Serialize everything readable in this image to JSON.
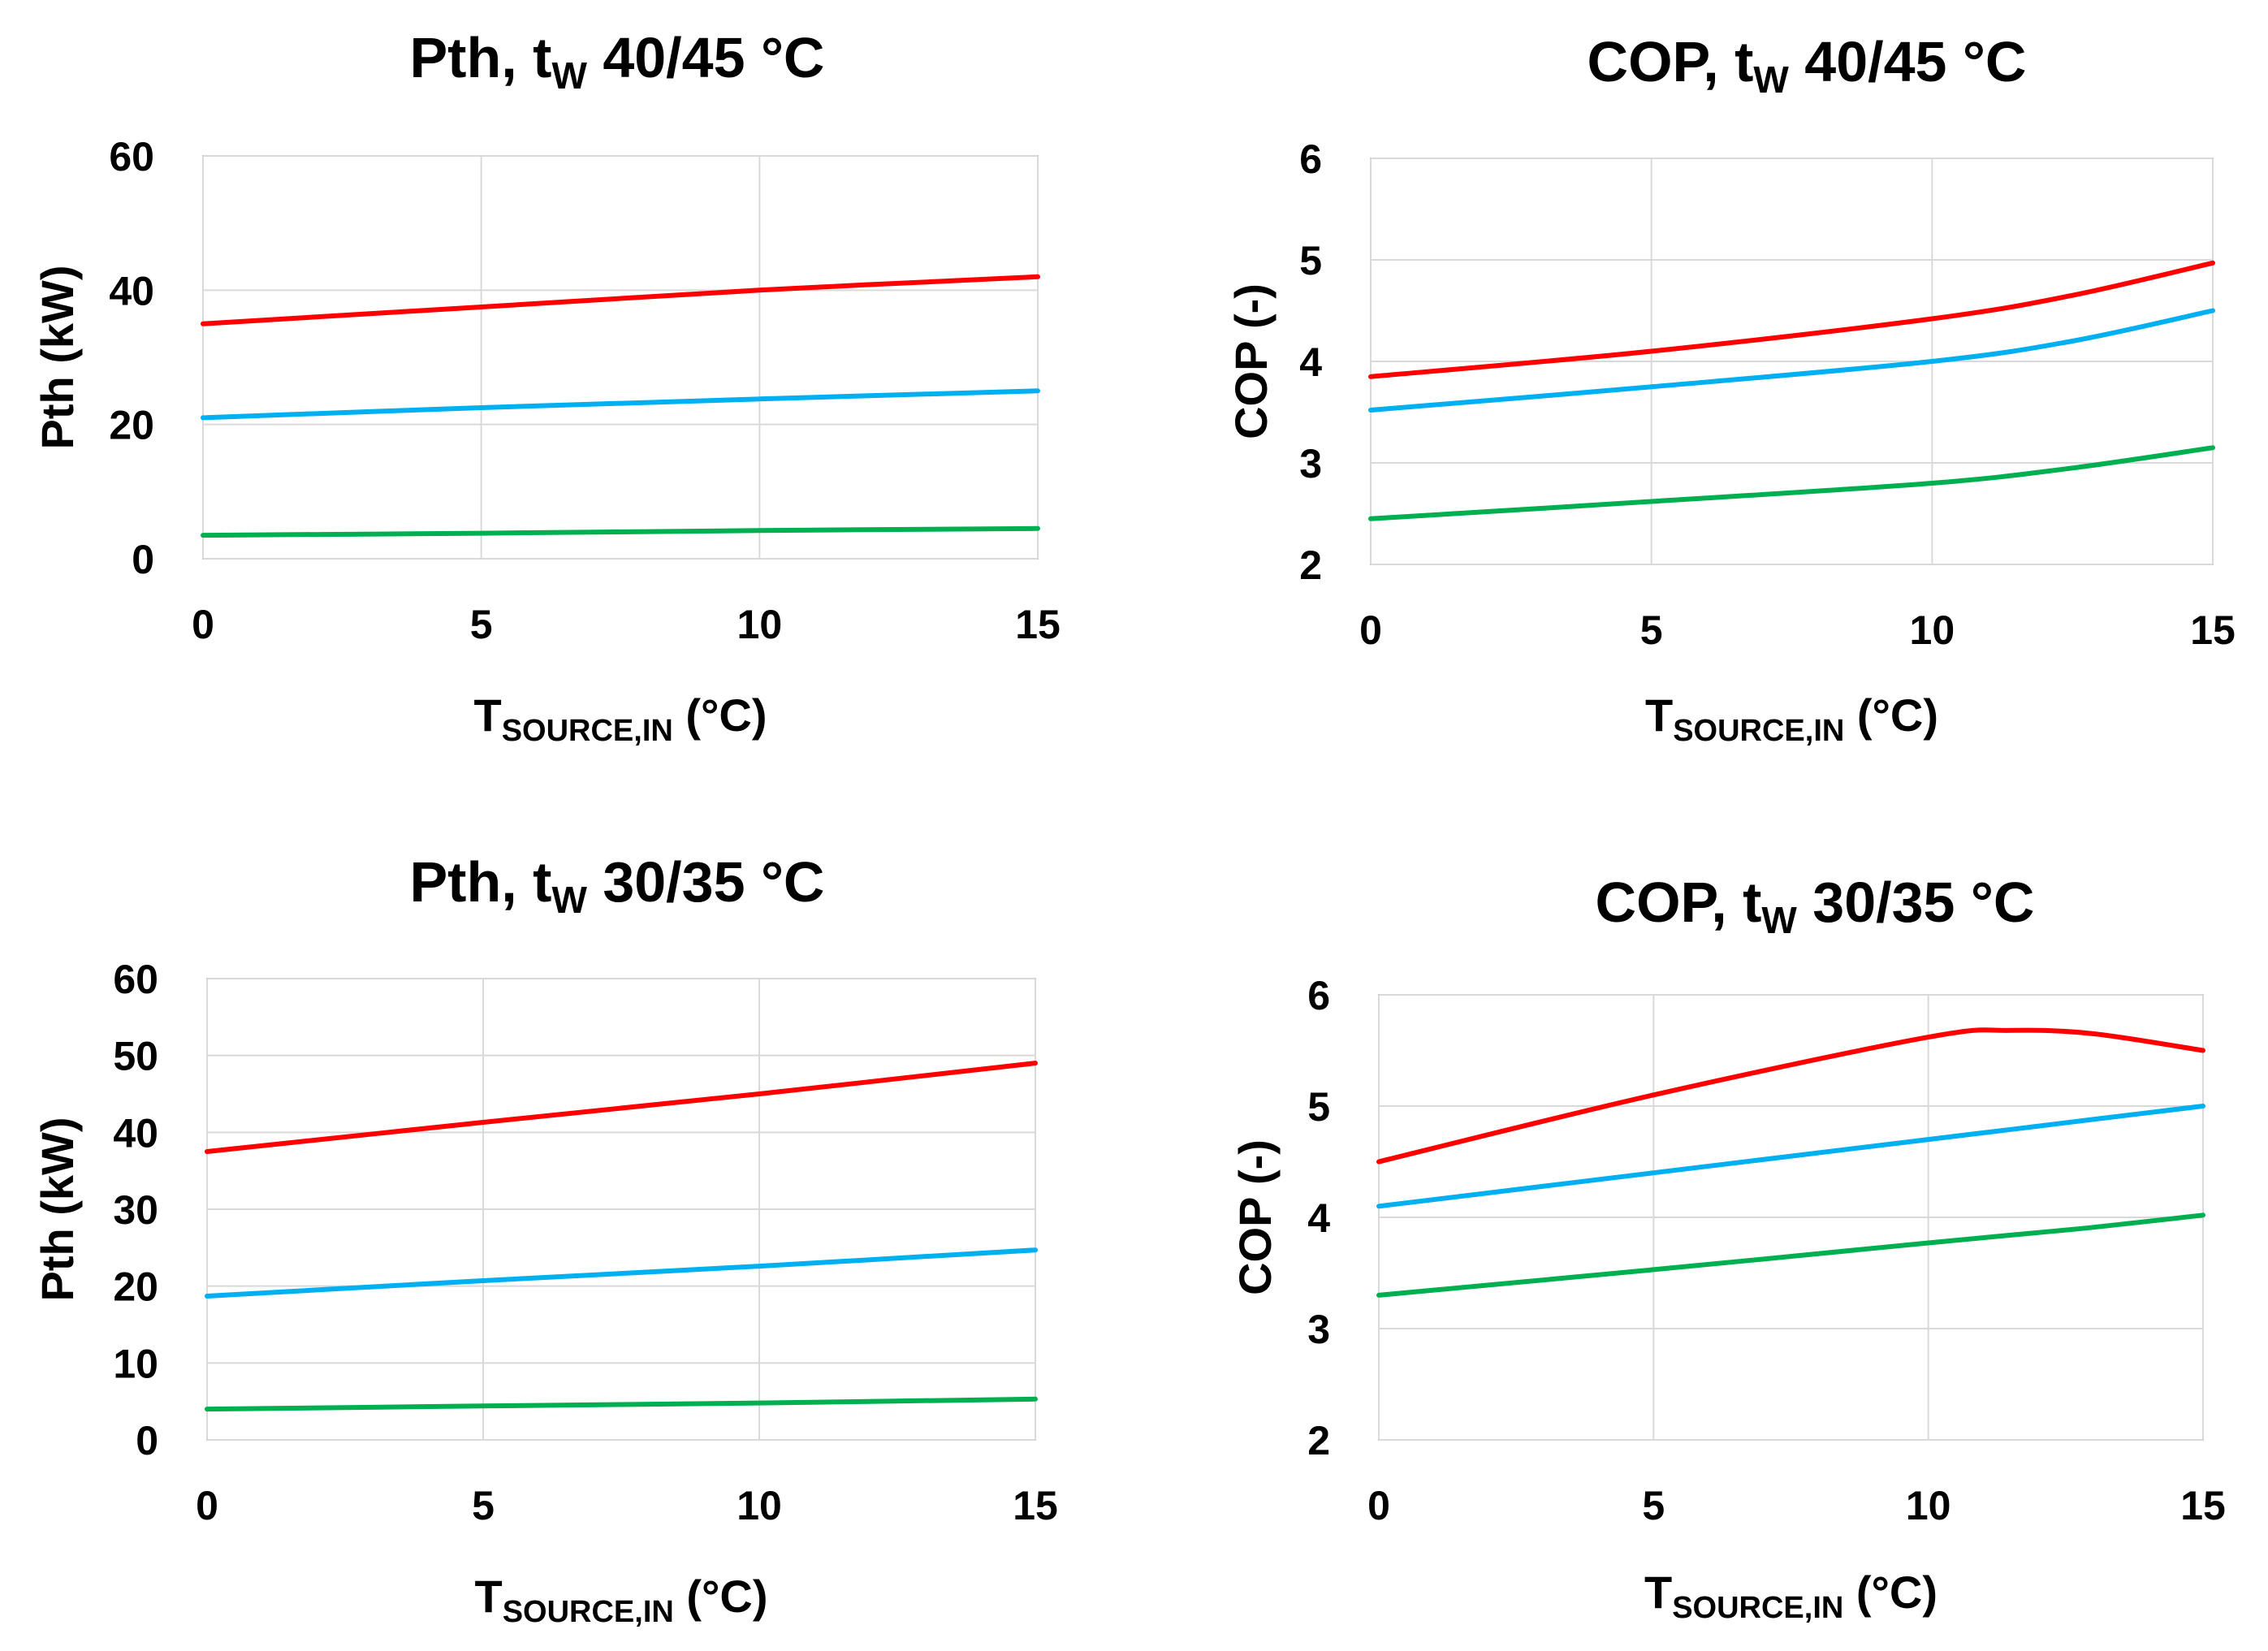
{
  "colors": {
    "red": "#ff0000",
    "blue": "#00b0f0",
    "green": "#00b050",
    "grid": "#d9d9d9",
    "frame": "#bfbfbf"
  },
  "chart_data": [
    {
      "type": "line",
      "title": {
        "main": "Pth, t",
        "sub": "W",
        "tail": " 40/45 °C"
      },
      "xlabel": {
        "main": "T",
        "sub": "SOURCE,IN",
        "tail": " (°C)"
      },
      "ylabel": "Pth  (kW)",
      "xlim": [
        0,
        15
      ],
      "ylim": [
        0,
        60
      ],
      "xticks": [
        "0",
        "5",
        "10",
        "15"
      ],
      "yticks": [
        "0",
        "20",
        "40",
        "60"
      ],
      "grid": true,
      "x": [
        0,
        5,
        10,
        15
      ],
      "series": [
        {
          "name": "red",
          "color": "#ff0000",
          "values": [
            35,
            37.5,
            40,
            42
          ]
        },
        {
          "name": "blue",
          "color": "#00b0f0",
          "values": [
            21,
            22.5,
            23.8,
            25
          ]
        },
        {
          "name": "green",
          "color": "#00b050",
          "values": [
            3.5,
            3.8,
            4.2,
            4.5
          ]
        }
      ]
    },
    {
      "type": "line",
      "title": {
        "main": "COP, t",
        "sub": "W",
        "tail": " 40/45 °C"
      },
      "xlabel": {
        "main": "T",
        "sub": "SOURCE,IN",
        "tail": " (°C)"
      },
      "ylabel": "COP (-)",
      "xlim": [
        0,
        15
      ],
      "ylim": [
        2,
        6
      ],
      "xticks": [
        "0",
        "5",
        "10",
        "15"
      ],
      "yticks": [
        "2",
        "3",
        "4",
        "5",
        "6"
      ],
      "grid": true,
      "x": [
        0,
        5,
        10,
        12.5,
        15
      ],
      "series": [
        {
          "name": "red",
          "color": "#ff0000",
          "values": [
            3.85,
            4.1,
            4.42,
            4.65,
            4.97
          ]
        },
        {
          "name": "blue",
          "color": "#00b0f0",
          "values": [
            3.52,
            3.75,
            4.0,
            4.2,
            4.5
          ]
        },
        {
          "name": "green",
          "color": "#00b050",
          "values": [
            2.45,
            2.62,
            2.8,
            2.95,
            3.15
          ]
        }
      ]
    },
    {
      "type": "line",
      "title": {
        "main": "Pth, t",
        "sub": "W",
        "tail": " 30/35 °C"
      },
      "xlabel": {
        "main": "T",
        "sub": "SOURCE,IN",
        "tail": " (°C)"
      },
      "ylabel": "Pth (kW)",
      "xlim": [
        0,
        15
      ],
      "ylim": [
        0,
        60
      ],
      "xticks": [
        "0",
        "5",
        "10",
        "15"
      ],
      "yticks": [
        "0",
        "10",
        "20",
        "30",
        "40",
        "50",
        "60"
      ],
      "grid": true,
      "x": [
        0,
        5,
        10,
        15
      ],
      "series": [
        {
          "name": "red",
          "color": "#ff0000",
          "values": [
            37.5,
            41.3,
            45,
            49
          ]
        },
        {
          "name": "blue",
          "color": "#00b0f0",
          "values": [
            18.7,
            20.7,
            22.6,
            24.7
          ]
        },
        {
          "name": "green",
          "color": "#00b050",
          "values": [
            4,
            4.4,
            4.8,
            5.3
          ]
        }
      ]
    },
    {
      "type": "line",
      "title": {
        "main": "COP, t",
        "sub": "W",
        "tail": " 30/35 °C"
      },
      "xlabel": {
        "main": "T",
        "sub": "SOURCE,IN",
        "tail": " (°C)"
      },
      "ylabel": "COP (-)",
      "xlim": [
        0,
        15
      ],
      "ylim": [
        2,
        6
      ],
      "xticks": [
        "0",
        "5",
        "10",
        "15"
      ],
      "yticks": [
        "2",
        "3",
        "4",
        "5",
        "6"
      ],
      "grid": true,
      "x": [
        0,
        5,
        10,
        11.5,
        13,
        15
      ],
      "series": [
        {
          "name": "red",
          "color": "#ff0000",
          "values": [
            4.5,
            5.1,
            5.62,
            5.68,
            5.65,
            5.5
          ]
        },
        {
          "name": "blue",
          "color": "#00b0f0",
          "values": [
            4.1,
            4.4,
            4.7,
            4.79,
            4.88,
            5.0
          ]
        },
        {
          "name": "green",
          "color": "#00b050",
          "values": [
            3.3,
            3.53,
            3.77,
            3.84,
            3.91,
            4.02
          ]
        }
      ]
    }
  ]
}
